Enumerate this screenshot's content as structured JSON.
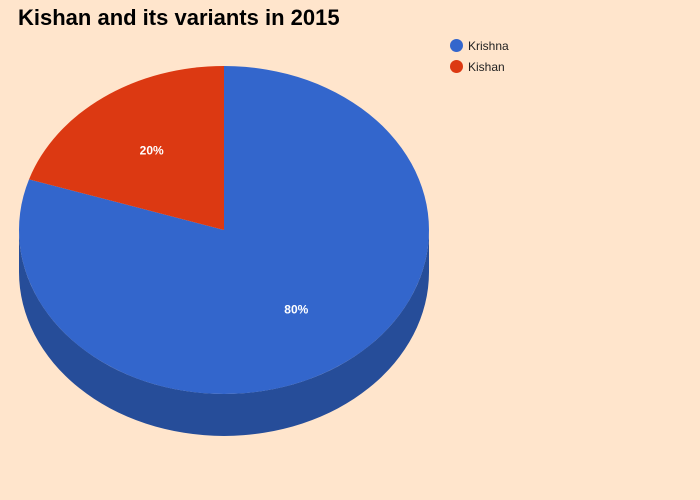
{
  "chart_data": {
    "type": "pie",
    "title": "Kishan and its variants in 2015",
    "slices": [
      {
        "label": "Krishna",
        "value": 80,
        "display": "80%",
        "color": "#3366cc",
        "side_color": "#264d99"
      },
      {
        "label": "Kishan",
        "value": 20,
        "display": "20%",
        "color": "#dc3912",
        "side_color": "#a52b0e"
      }
    ],
    "legend_position": "top-right",
    "style": "3d"
  }
}
